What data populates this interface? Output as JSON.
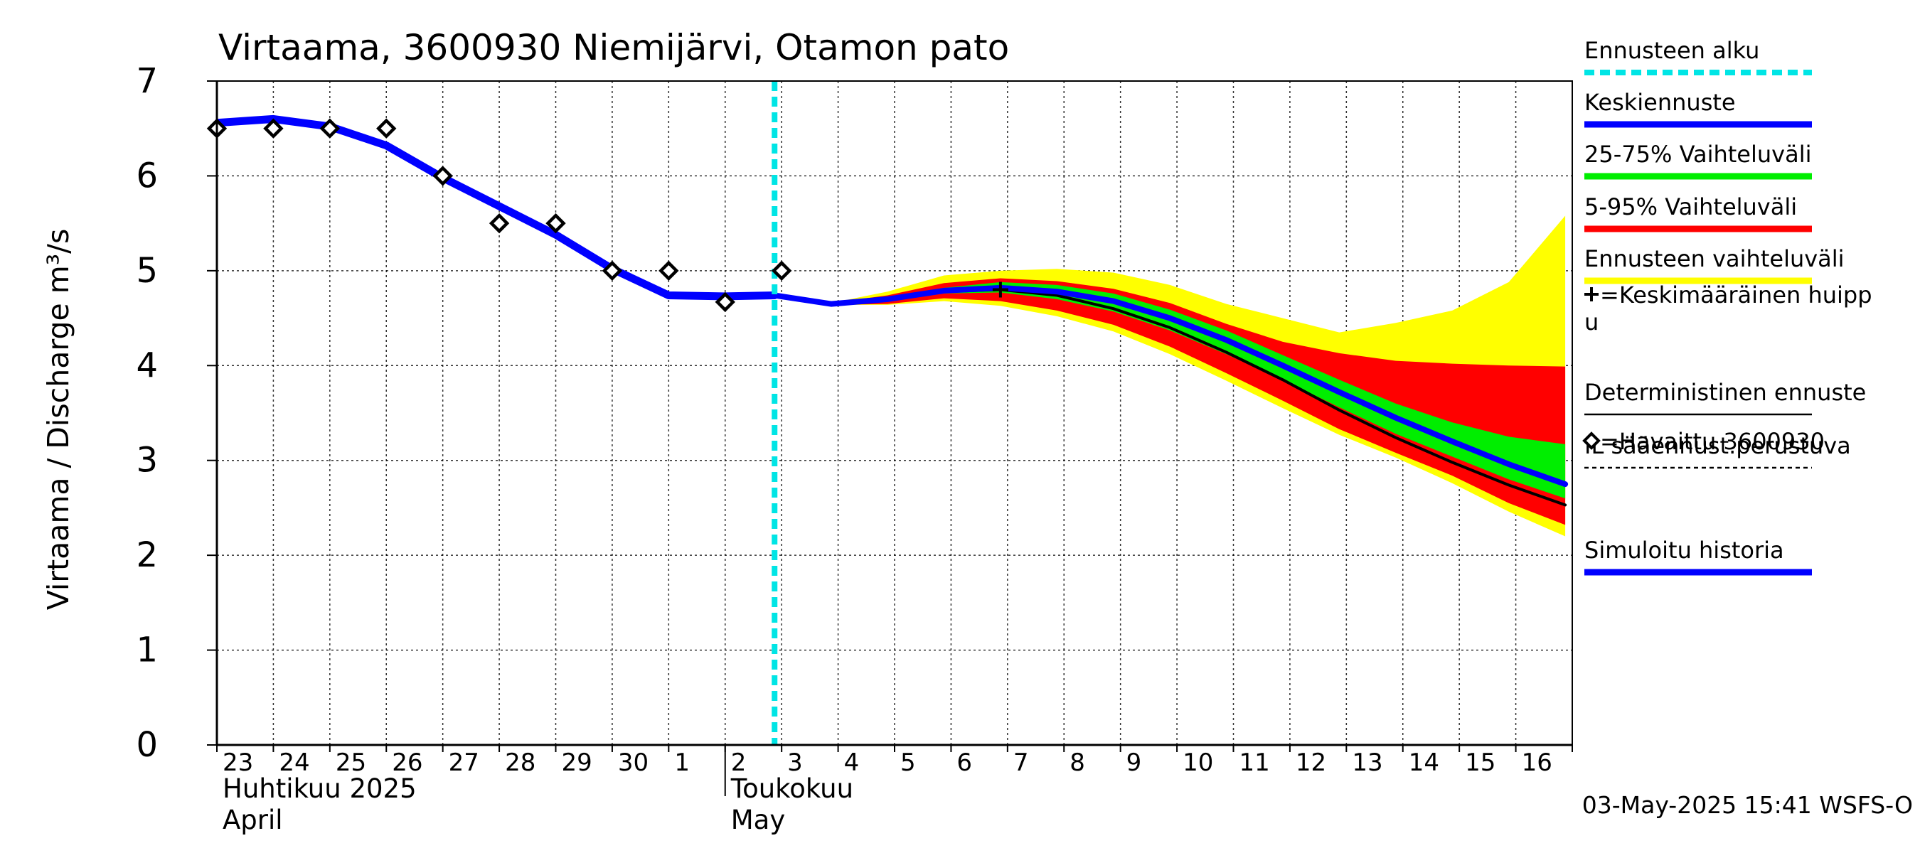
{
  "chart_data": {
    "type": "line",
    "title": "Virtaama, 3600930 Niemijärvi, Otamon pato",
    "ylabel": "Virtaama / Discharge    m³/s",
    "ylim": [
      0,
      7
    ],
    "yticks": [
      0,
      1,
      2,
      3,
      4,
      5,
      6,
      7
    ],
    "grid": true,
    "legend_position": "right",
    "x_day_range": [
      "2025-04-23",
      "2025-05-17"
    ],
    "x_tick_labels": [
      "23",
      "24",
      "25",
      "26",
      "27",
      "28",
      "29",
      "30",
      "1",
      "2",
      "3",
      "4",
      "5",
      "6",
      "7",
      "8",
      "9",
      "10",
      "11",
      "12",
      "13",
      "14",
      "15",
      "16"
    ],
    "month_labels": [
      {
        "fi": "Huhtikuu  2025",
        "en": "April",
        "start": "2025-04-23"
      },
      {
        "fi": "Toukokuu",
        "en": "May",
        "start": "2025-05-02"
      }
    ],
    "forecast_start": "2025-05-02T21:00",
    "timestamp": "03-May-2025 15:41 WSFS-O",
    "colors": {
      "forecast_start": "#00e5e5",
      "mean_forecast": "#0000ff",
      "band_25_75": "#00ee00",
      "band_5_95": "#ff0000",
      "band_full": "#ffff00",
      "deterministic": "#000000",
      "simulated_history": "#0000ff"
    },
    "legend": [
      {
        "label": "Ennusteen alku",
        "style": "dashed-cyan"
      },
      {
        "label": "Keskiennuste",
        "style": "blue"
      },
      {
        "label": "25-75% Vaihteluväli",
        "style": "green"
      },
      {
        "label": "5-95% Vaihteluväli",
        "style": "red"
      },
      {
        "label": "Ennusteen vaihteluväli",
        "style": "yellow"
      },
      {
        "label": "=Keskimääräinen huippu",
        "style": "plus"
      },
      {
        "label": "Deterministinen ennuste",
        "style": "thin-black"
      },
      {
        "label": "IL sääennust.perustuva",
        "style": "dashed-black"
      },
      {
        "label": "=Havaittu 3600930",
        "style": "diamond"
      },
      {
        "label": "Simuloitu historia",
        "style": "blue"
      }
    ],
    "series": [
      {
        "name": "Simuloitu historia",
        "x": [
          "2025-04-23",
          "2025-04-24",
          "2025-04-25",
          "2025-04-26",
          "2025-04-27",
          "2025-04-28",
          "2025-04-29",
          "2025-04-30",
          "2025-05-01",
          "2025-05-02",
          "2025-05-02T21:00"
        ],
        "values": [
          6.56,
          6.6,
          6.52,
          6.32,
          5.98,
          5.68,
          5.38,
          5.02,
          4.74,
          4.73,
          4.74
        ]
      },
      {
        "name": "Keskiennuste",
        "x": [
          "2025-05-02T21:00",
          "2025-05-03T21:00",
          "2025-05-04T21:00",
          "2025-05-05T21:00",
          "2025-05-06T21:00",
          "2025-05-07T21:00",
          "2025-05-08T21:00",
          "2025-05-09T21:00",
          "2025-05-10T21:00",
          "2025-05-11T21:00",
          "2025-05-12T21:00",
          "2025-05-13T21:00",
          "2025-05-14T21:00",
          "2025-05-15T21:00",
          "2025-05-16T21:00"
        ],
        "values": [
          4.74,
          4.65,
          4.7,
          4.79,
          4.82,
          4.78,
          4.68,
          4.5,
          4.27,
          4.0,
          3.72,
          3.45,
          3.2,
          2.96,
          2.75
        ]
      },
      {
        "name": "Deterministinen ennuste",
        "x": [
          "2025-05-02T21:00",
          "2025-05-03T21:00",
          "2025-05-04T21:00",
          "2025-05-05T21:00",
          "2025-05-06T21:00",
          "2025-05-07T21:00",
          "2025-05-08T21:00",
          "2025-05-09T21:00",
          "2025-05-10T21:00",
          "2025-05-11T21:00",
          "2025-05-12T21:00",
          "2025-05-13T21:00",
          "2025-05-14T21:00",
          "2025-05-15T21:00",
          "2025-05-16T21:00"
        ],
        "values": [
          4.74,
          4.65,
          4.7,
          4.78,
          4.8,
          4.74,
          4.6,
          4.4,
          4.14,
          3.85,
          3.53,
          3.24,
          2.98,
          2.74,
          2.53
        ]
      },
      {
        "name": "=Havaittu 3600930",
        "x": [
          "2025-04-23",
          "2025-04-24",
          "2025-04-25",
          "2025-04-26",
          "2025-04-27",
          "2025-04-28",
          "2025-04-29",
          "2025-04-30",
          "2025-05-01",
          "2025-05-02",
          "2025-05-03"
        ],
        "values": [
          6.5,
          6.5,
          6.5,
          6.5,
          6.0,
          5.5,
          5.5,
          5.0,
          5.0,
          4.67,
          5.0
        ]
      }
    ],
    "bands": [
      {
        "name": "Ennusteen vaihteluväli",
        "x": [
          "2025-05-02T21:00",
          "2025-05-03T21:00",
          "2025-05-04T21:00",
          "2025-05-05T21:00",
          "2025-05-06T21:00",
          "2025-05-07T21:00",
          "2025-05-08T21:00",
          "2025-05-09T21:00",
          "2025-05-10T21:00",
          "2025-05-11T21:00",
          "2025-05-12T21:00",
          "2025-05-13T21:00",
          "2025-05-14T21:00",
          "2025-05-15T21:00",
          "2025-05-16T21:00"
        ],
        "lower": [
          4.74,
          4.64,
          4.64,
          4.68,
          4.63,
          4.52,
          4.36,
          4.12,
          3.84,
          3.55,
          3.27,
          3.03,
          2.76,
          2.46,
          2.2
        ],
        "upper": [
          4.74,
          4.66,
          4.78,
          4.95,
          5.0,
          5.02,
          4.98,
          4.85,
          4.65,
          4.5,
          4.35,
          4.45,
          4.58,
          4.88,
          5.58
        ]
      },
      {
        "name": "5-95% Vaihteluväli",
        "x": [
          "2025-05-02T21:00",
          "2025-05-03T21:00",
          "2025-05-04T21:00",
          "2025-05-05T21:00",
          "2025-05-06T21:00",
          "2025-05-07T21:00",
          "2025-05-08T21:00",
          "2025-05-09T21:00",
          "2025-05-10T21:00",
          "2025-05-11T21:00",
          "2025-05-12T21:00",
          "2025-05-13T21:00",
          "2025-05-14T21:00",
          "2025-05-15T21:00",
          "2025-05-16T21:00"
        ],
        "lower": [
          4.74,
          4.64,
          4.65,
          4.71,
          4.68,
          4.58,
          4.43,
          4.2,
          3.92,
          3.63,
          3.33,
          3.08,
          2.84,
          2.55,
          2.32
        ],
        "upper": [
          4.74,
          4.66,
          4.74,
          4.87,
          4.92,
          4.89,
          4.81,
          4.66,
          4.44,
          4.25,
          4.13,
          4.05,
          4.02,
          4.0,
          3.99
        ]
      },
      {
        "name": "25-75% Vaihteluväli",
        "x": [
          "2025-05-02T21:00",
          "2025-05-03T21:00",
          "2025-05-04T21:00",
          "2025-05-05T21:00",
          "2025-05-06T21:00",
          "2025-05-07T21:00",
          "2025-05-08T21:00",
          "2025-05-09T21:00",
          "2025-05-10T21:00",
          "2025-05-11T21:00",
          "2025-05-12T21:00",
          "2025-05-13T21:00",
          "2025-05-14T21:00",
          "2025-05-15T21:00",
          "2025-05-16T21:00"
        ],
        "lower": [
          4.74,
          4.65,
          4.68,
          4.76,
          4.77,
          4.7,
          4.57,
          4.37,
          4.12,
          3.85,
          3.56,
          3.28,
          3.04,
          2.8,
          2.6
        ],
        "upper": [
          4.74,
          4.65,
          4.72,
          4.82,
          4.88,
          4.85,
          4.76,
          4.59,
          4.37,
          4.11,
          3.85,
          3.6,
          3.4,
          3.25,
          3.17
        ]
      }
    ],
    "mean_peak": {
      "x": "2025-05-06T21:00",
      "value": 4.8
    }
  }
}
